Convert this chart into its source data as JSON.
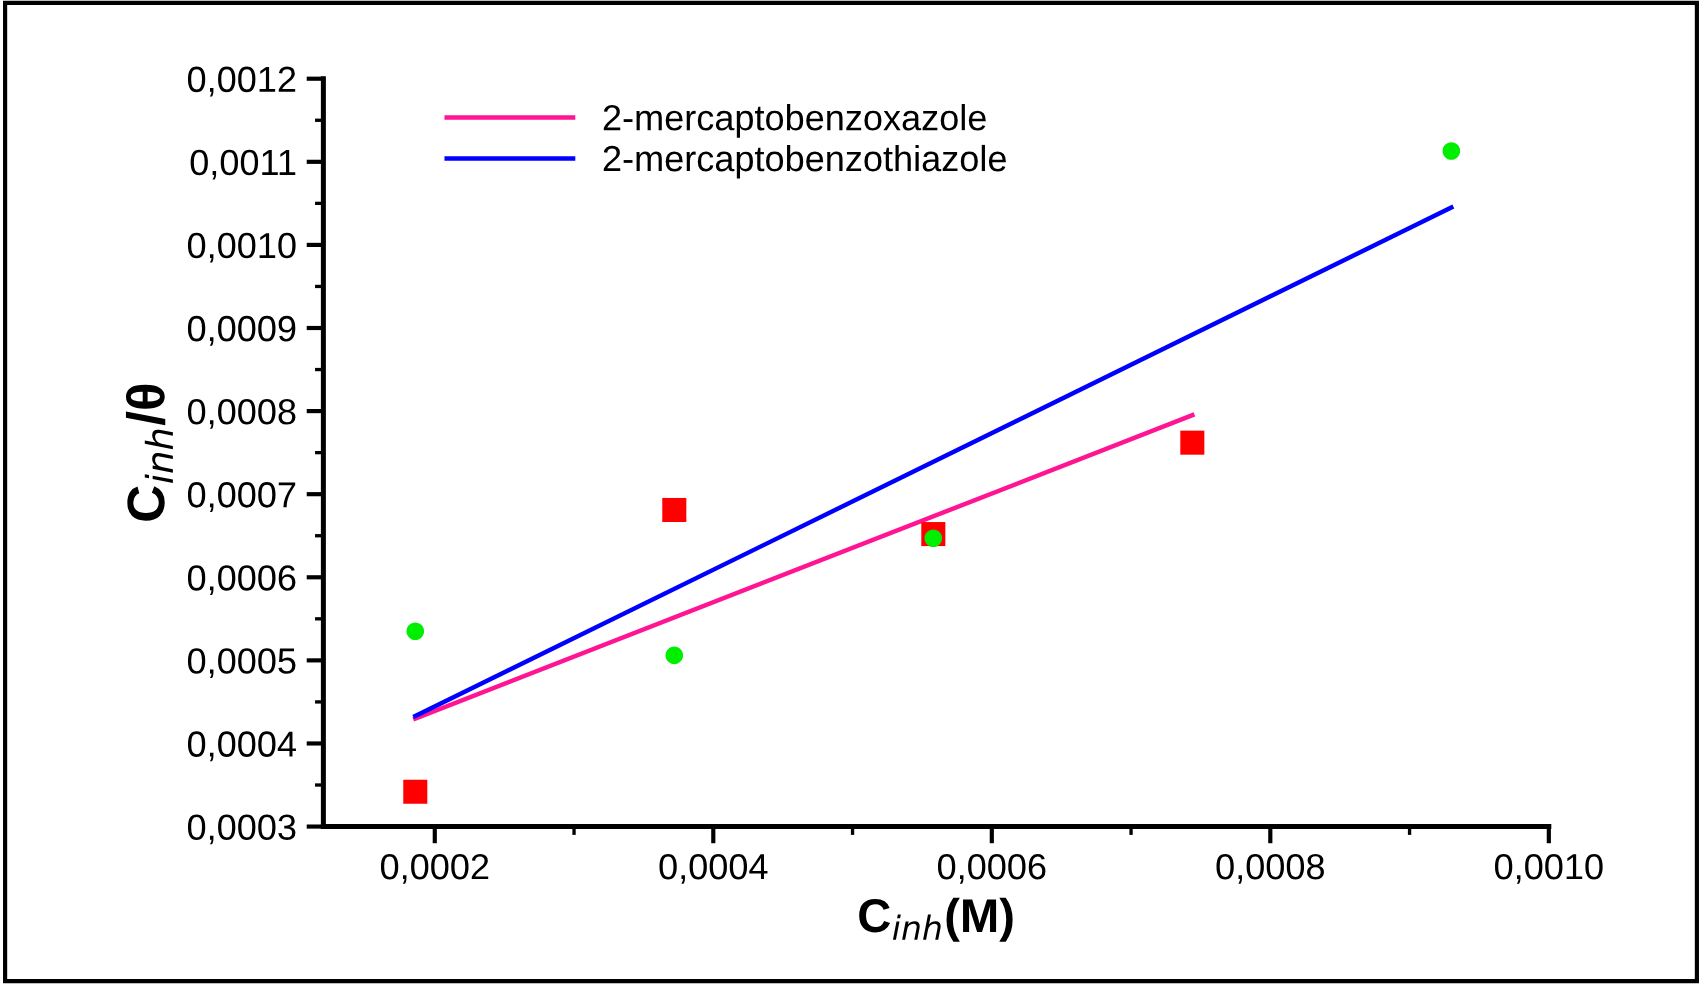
{
  "chart_data": {
    "type": "scatter",
    "xlabel": "C$_{inh}$(M)",
    "ylabel": "C$_{inh}$/θ",
    "xlim": [
      0.00012,
      0.001
    ],
    "ylim": [
      0.0003,
      0.0012
    ],
    "xticks": [
      {
        "value": 0.0002,
        "label": "0,0002"
      },
      {
        "value": 0.0004,
        "label": "0,0004"
      },
      {
        "value": 0.0006,
        "label": "0,0006"
      },
      {
        "value": 0.0008,
        "label": "0,0008"
      },
      {
        "value": 0.001,
        "label": "0,0010"
      }
    ],
    "yticks": [
      {
        "value": 0.0003,
        "label": "0,0003"
      },
      {
        "value": 0.0004,
        "label": "0,0004"
      },
      {
        "value": 0.0005,
        "label": "0,0005"
      },
      {
        "value": 0.0006,
        "label": "0,0006"
      },
      {
        "value": 0.0007,
        "label": "0,0007"
      },
      {
        "value": 0.0008,
        "label": "0,0008"
      },
      {
        "value": 0.0009,
        "label": "0,0009"
      },
      {
        "value": 0.001,
        "label": "0,0010"
      },
      {
        "value": 0.0011,
        "label": "0,0011"
      },
      {
        "value": 0.0012,
        "label": "0,0012"
      }
    ],
    "grid": false,
    "legend": "top left",
    "series": [
      {
        "marker": "square",
        "color": "#ff0000",
        "x": [
          0.000186,
          0.000372,
          0.000558,
          0.000744
        ],
        "values": [
          0.000342,
          0.000681,
          0.000652,
          0.000762
        ]
      },
      {
        "marker": "circle",
        "color": "#00ee00",
        "x": [
          0.000186,
          0.000372,
          0.000558,
          0.00093
        ],
        "values": [
          0.000535,
          0.000506,
          0.000647,
          0.001113
        ]
      },
      {
        "type": "line",
        "name": "2-mercaptobenzoxazole",
        "color": "#ff1493",
        "x": [
          0.000186,
          0.000744
        ],
        "values": [
          0.00043,
          0.000795
        ]
      },
      {
        "type": "line",
        "name": "2-mercaptobenzothiazole",
        "color": "#0000ff",
        "x": [
          0.000186,
          0.00093
        ],
        "values": [
          0.000433,
          0.001045
        ]
      }
    ]
  }
}
